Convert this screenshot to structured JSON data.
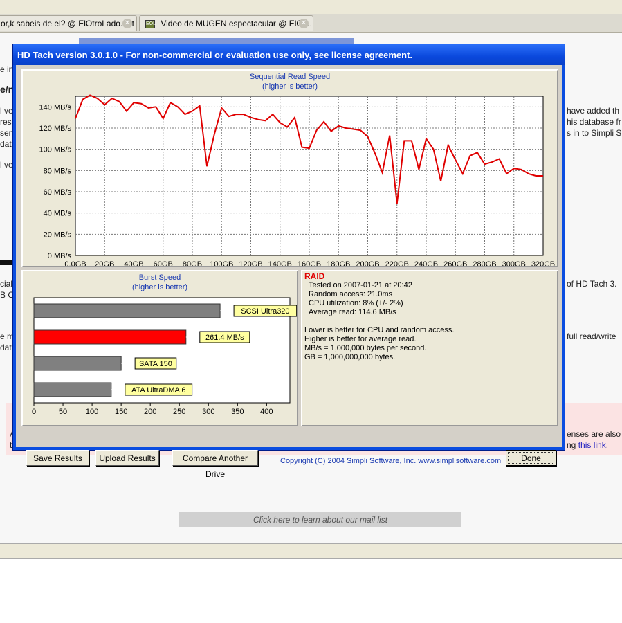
{
  "browser": {
    "tabs": [
      {
        "title": "or,k sabeis de el? @ ElOtroLado.net"
      },
      {
        "title": "Video de MUGEN espectacular @ ElOtr..."
      }
    ],
    "tab_icon_text": "EOL"
  },
  "page": {
    "fragments": {
      "left": [
        "e in",
        "e/m",
        "l ve",
        "res",
        "sen",
        "data",
        "l ve",
        "cial",
        "B C",
        "e mo",
        "data",
        "A",
        "t"
      ],
      "right": [
        "have added th",
        "his database fr",
        "s in to Simpli S",
        "of HD Tach 3.",
        "full read/write",
        "enses are also",
        "ng"
      ],
      "right_link": "this link",
      "right_link_end": "."
    },
    "mail_list": "Click here to learn about our mail list"
  },
  "window": {
    "title": "HD Tach version 3.0.1.0  - For non-commercial or evaluation use only, see license agreement.",
    "buttons": {
      "save": "Save Results",
      "upload": "Upload Results",
      "compare": "Compare Another Drive",
      "done": "Done"
    },
    "copyright": "Copyright (C) 2004 Simpli Software, Inc. www.simplisoftware.com"
  },
  "info": {
    "drive_label": "RAID",
    "tested_on": "Tested on 2007-01-21 at 20:42",
    "random_access": "Random access: 21.0ms",
    "cpu": "CPU utilization: 8% (+/- 2%)",
    "average_read": "Average read: 114.6 MB/s",
    "notes": [
      "Lower is better for CPU and random access.",
      "Higher is better for average read.",
      "MB/s = 1,000,000 bytes per second.",
      "GB = 1,000,000,000 bytes."
    ]
  },
  "chart_data": [
    {
      "type": "line",
      "title": "Sequential Read Speed",
      "subtitle": "(higher is better)",
      "x_unit": "GB",
      "y_unit": "MB/s",
      "xlim": [
        0,
        320
      ],
      "ylim": [
        0,
        150
      ],
      "x_ticks": [
        "0,0GB",
        "20GB",
        "40GB",
        "60GB",
        "80GB",
        "100GB",
        "120GB",
        "140GB",
        "160GB",
        "180GB",
        "200GB",
        "220GB",
        "240GB",
        "260GB",
        "280GB",
        "300GB",
        "320GB"
      ],
      "y_ticks": [
        "0 MB/s",
        "20 MB/s",
        "40 MB/s",
        "60 MB/s",
        "80 MB/s",
        "100 MB/s",
        "120 MB/s",
        "140 MB/s"
      ],
      "grid": true,
      "color": "#e00000",
      "x": [
        0,
        5,
        10,
        15,
        20,
        25,
        30,
        35,
        40,
        45,
        50,
        55,
        60,
        65,
        70,
        75,
        80,
        85,
        90,
        95,
        100,
        105,
        110,
        115,
        120,
        125,
        130,
        135,
        140,
        145,
        150,
        155,
        160,
        165,
        170,
        175,
        180,
        185,
        190,
        195,
        200,
        205,
        210,
        215,
        220,
        225,
        230,
        235,
        240,
        245,
        250,
        255,
        260,
        265,
        270,
        275,
        280,
        285,
        290,
        295,
        300,
        305,
        310,
        315,
        320
      ],
      "values": [
        129,
        147,
        151,
        148,
        142,
        148,
        145,
        136,
        144,
        143,
        139,
        140,
        129,
        144,
        140,
        133,
        136,
        141,
        84,
        114,
        139,
        131,
        133,
        133,
        130,
        128,
        127,
        133,
        125,
        121,
        130,
        102,
        101,
        118,
        126,
        117,
        122,
        120,
        119,
        118,
        112,
        96,
        78,
        113,
        49,
        108,
        108,
        81,
        110,
        100,
        70,
        104,
        90,
        77,
        94,
        97,
        86,
        88,
        91,
        77,
        82,
        81,
        77,
        75,
        75
      ]
    },
    {
      "type": "bar",
      "title": "Burst Speed",
      "subtitle": "(higher is better)",
      "orientation": "horizontal",
      "xlim": [
        0,
        440
      ],
      "x_ticks": [
        "0",
        "50",
        "100",
        "150",
        "200",
        "250",
        "300",
        "350",
        "400"
      ],
      "categories": [
        "SCSI Ultra320",
        "261.4 MB/s",
        "SATA 150",
        "ATA UltraDMA 6"
      ],
      "values": [
        320,
        261.4,
        150,
        133
      ],
      "colors": [
        "#808080",
        "#ff0000",
        "#808080",
        "#808080"
      ]
    }
  ]
}
